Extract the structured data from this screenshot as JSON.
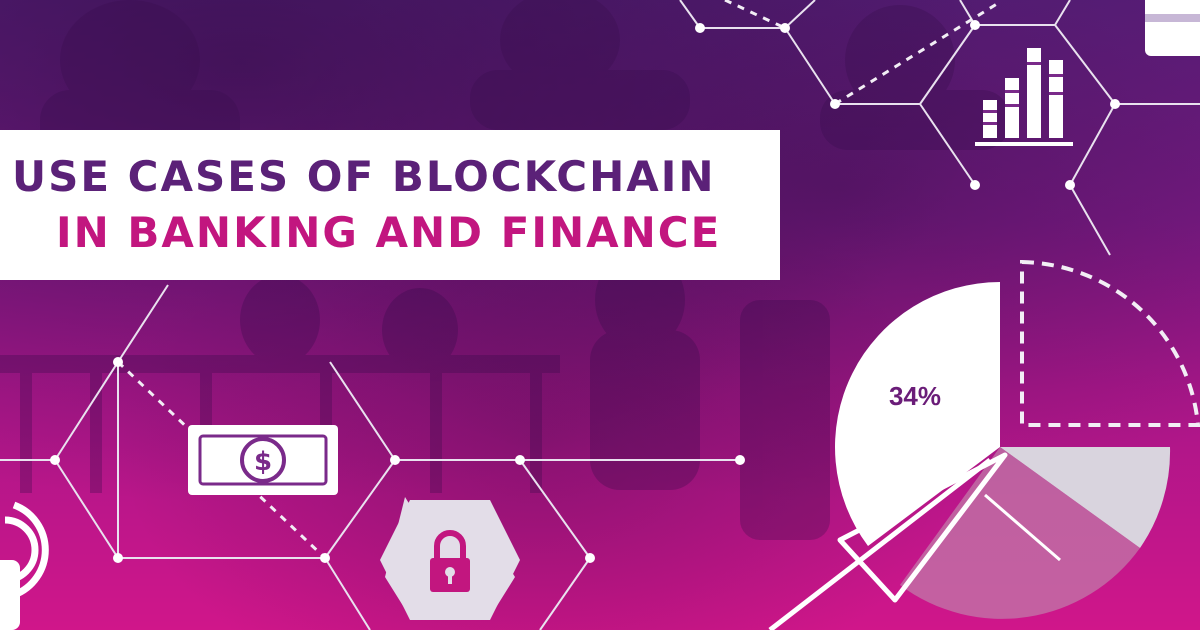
{
  "title": {
    "line1": "USE CASES OF BLOCKCHAIN",
    "line2": "IN BANKING AND FINANCE"
  },
  "pie_chart": {
    "label": "34%",
    "value_percent": 34
  },
  "icons": {
    "money": "dollar-bill-icon",
    "lock": "padlock-icon",
    "bars": "bar-chart-icon",
    "card": "credit-card-icon",
    "wireless": "contactless-payment-icon",
    "arrow": "arrow-icon"
  },
  "colors": {
    "purple": "#5b2178",
    "magenta": "#c2167f",
    "white": "#ffffff",
    "light_gray": "#d9d4de"
  }
}
